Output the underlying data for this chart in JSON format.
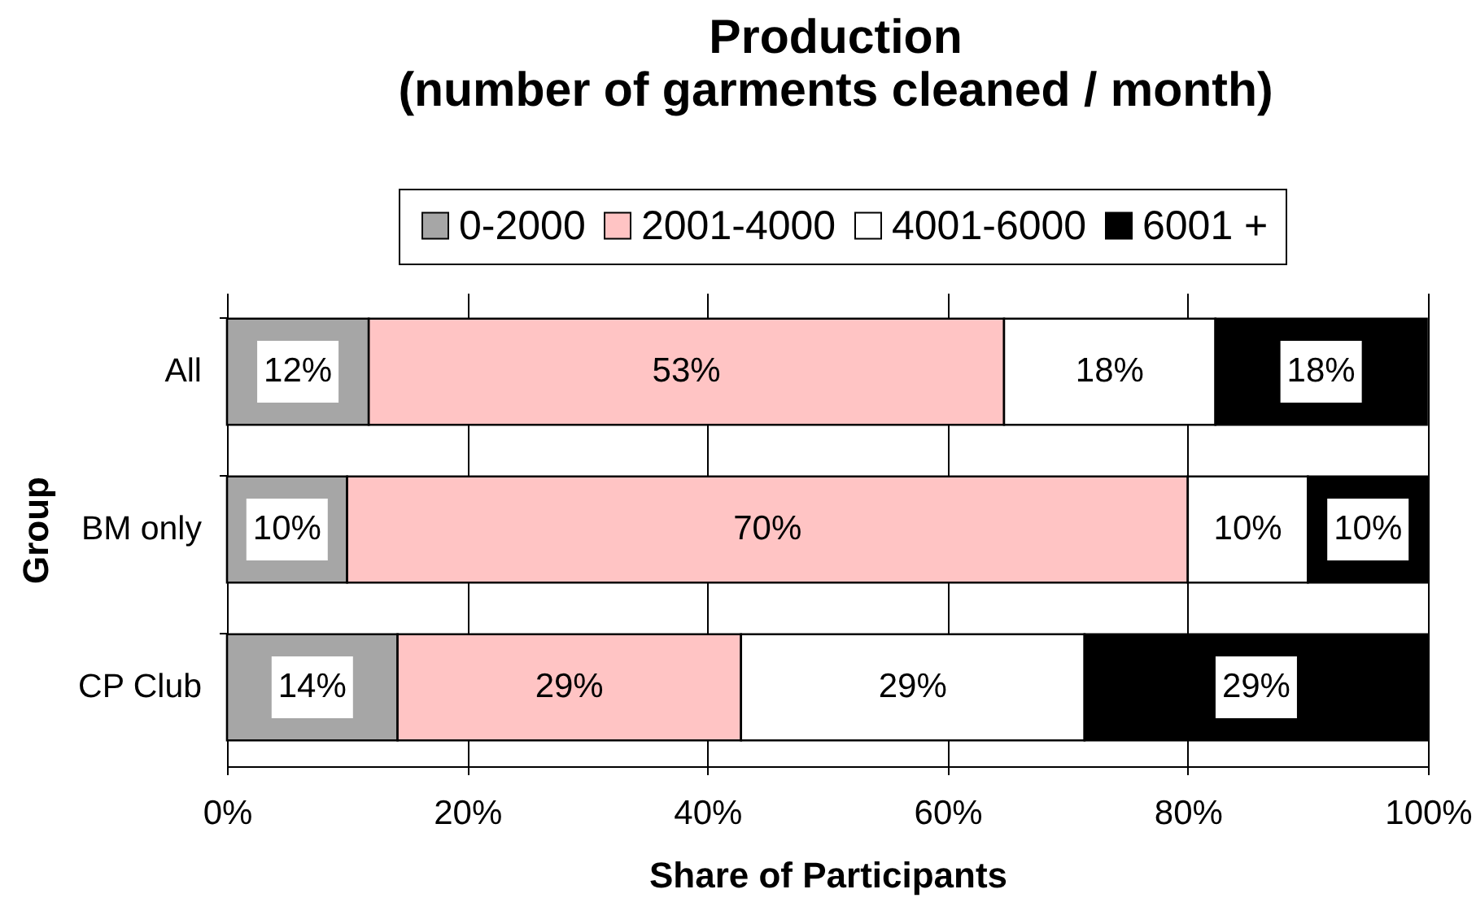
{
  "chart_data": {
    "type": "bar",
    "orientation": "horizontal",
    "stacked": true,
    "title": "Production",
    "subtitle": "(number of garments cleaned / month)",
    "xlabel": "Share of Participants",
    "ylabel": "Group",
    "categories": [
      "All",
      "BM only",
      "CP Club"
    ],
    "series": [
      {
        "name": "0-2000",
        "color": "#a6a6a6",
        "values": [
          11.8,
          10,
          14.2
        ],
        "value_labels": [
          "12%",
          "10%",
          "14%"
        ]
      },
      {
        "name": "2001-4000",
        "color": "#ffc4c4",
        "values": [
          52.9,
          70,
          28.6
        ],
        "value_labels": [
          "53%",
          "70%",
          "29%"
        ]
      },
      {
        "name": "4001-6000",
        "color": "#ffffff",
        "values": [
          17.6,
          10,
          28.6
        ],
        "value_labels": [
          "18%",
          "10%",
          "29%"
        ]
      },
      {
        "name": "6001 +",
        "color": "#000000",
        "values": [
          17.6,
          10,
          28.6
        ],
        "value_labels": [
          "18%",
          "10%",
          "29%"
        ]
      }
    ],
    "xlim": [
      0,
      100
    ],
    "xticks": [
      {
        "value": 0,
        "label": "0%"
      },
      {
        "value": 20,
        "label": "20%"
      },
      {
        "value": 40,
        "label": "40%"
      },
      {
        "value": 60,
        "label": "60%"
      },
      {
        "value": 80,
        "label": "80%"
      },
      {
        "value": 100,
        "label": "100%"
      }
    ],
    "grid": "x",
    "legend": "top"
  }
}
